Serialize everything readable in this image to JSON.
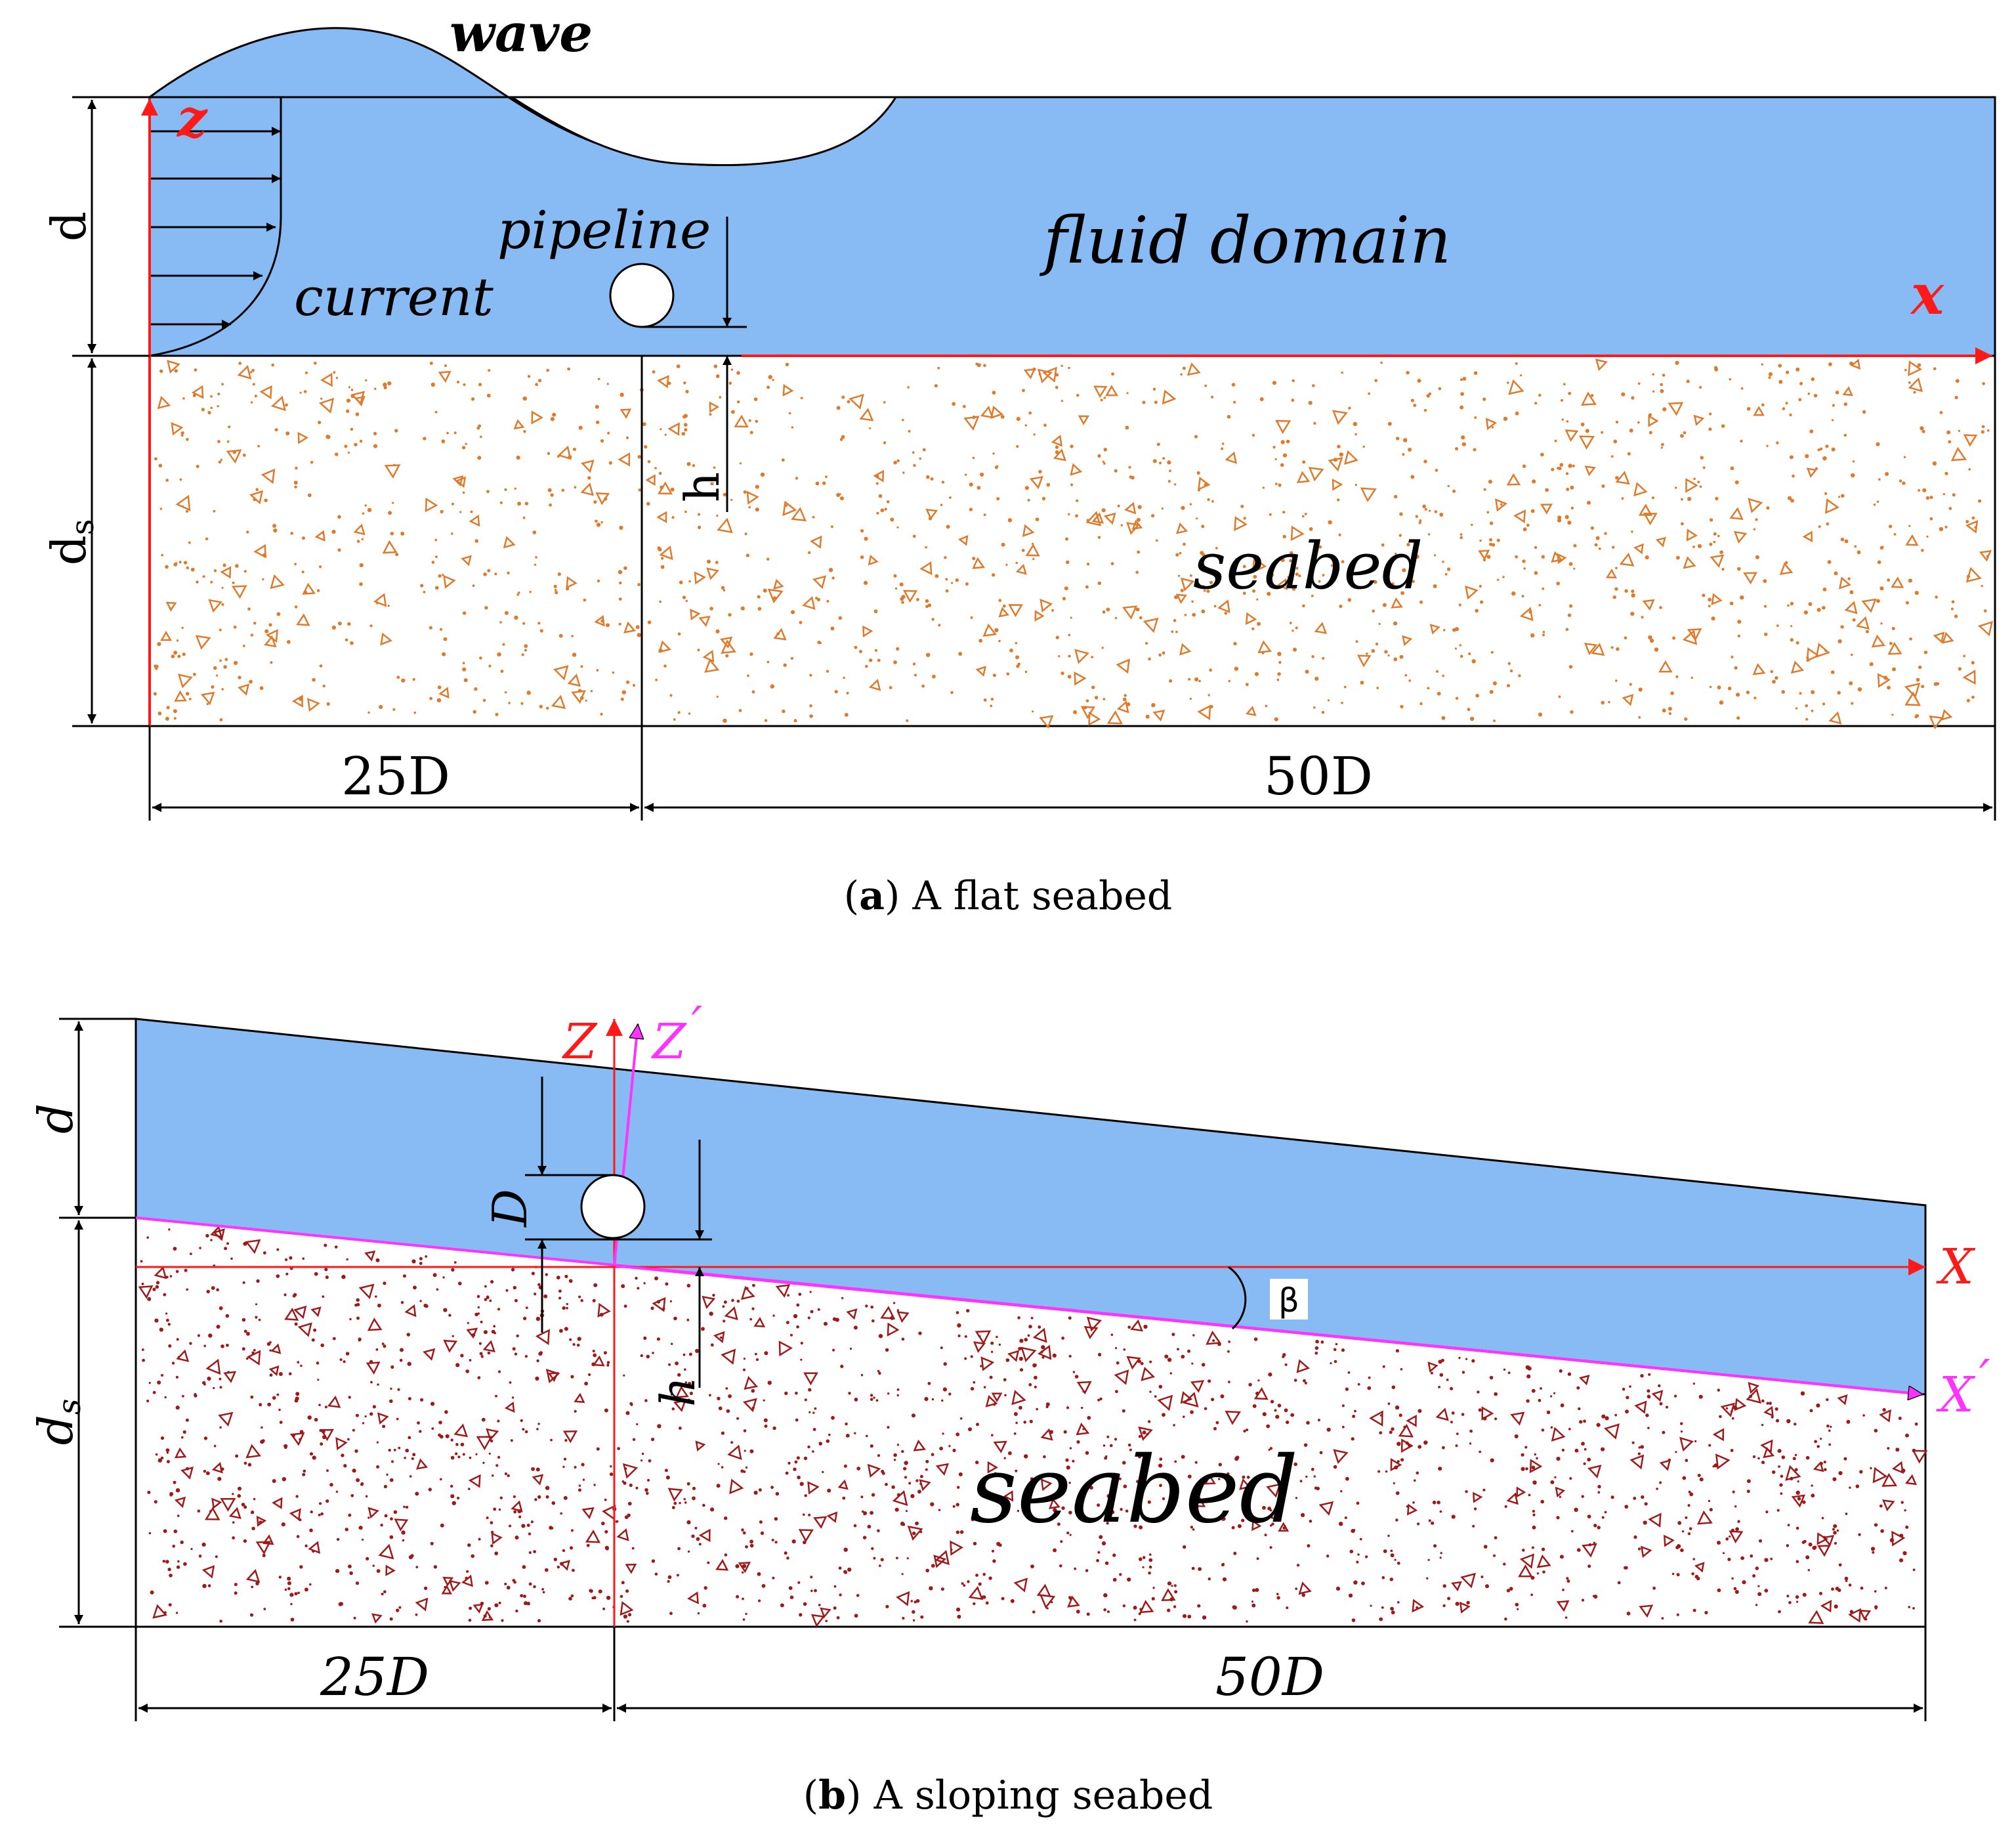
{
  "panel_a": {
    "wave_label": "wave",
    "pipeline_label": "pipeline",
    "fluid_label": "fluid domain",
    "current_label": "current",
    "seabed_label": "seabed",
    "z_axis_label": "z",
    "x_axis_label": "x",
    "d_label": "d",
    "ds_label": "d",
    "ds_sub": "s",
    "h_label": "h",
    "span_left_label": "25D",
    "span_right_label": "50D",
    "caption_letter": "a",
    "caption_text": " A flat seabed"
  },
  "panel_b": {
    "seabed_label": "seabed",
    "Z_label": "Z",
    "Zprime_label": "Z",
    "X_label": "X",
    "Xprime_label": "X",
    "prime": "′",
    "D_label": "D",
    "d_label": "d",
    "ds_label": "d",
    "ds_sub": "s",
    "h_label": "h",
    "beta_label": "β",
    "span_left_label": "25D",
    "span_right_label": "50D",
    "caption_letter": "b",
    "caption_text": " A sloping seabed"
  },
  "colors": {
    "water": "#88bbf4",
    "grain_a": "#e07a2a",
    "grain_b": "#a11818",
    "axis_red": "#ff1a1a",
    "axis_magenta": "#ff33ff",
    "ink": "#000000"
  }
}
